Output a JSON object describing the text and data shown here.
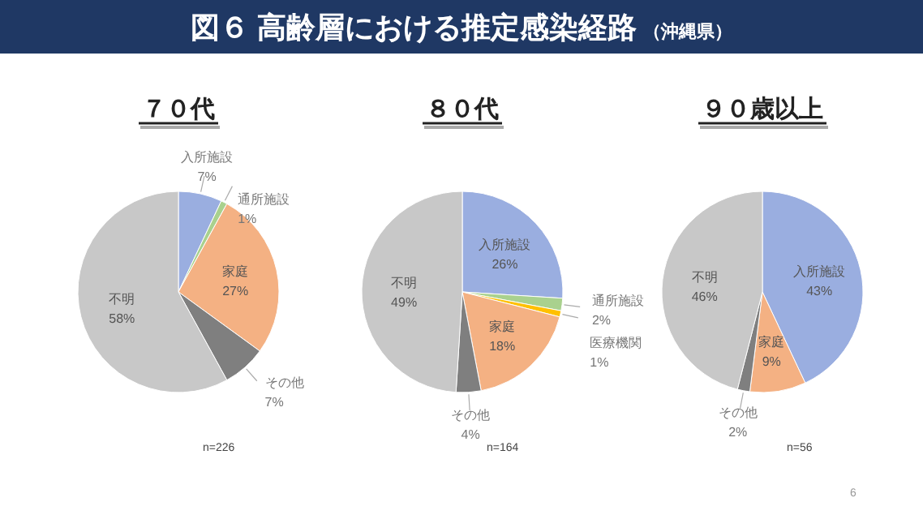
{
  "chart_data": [
    {
      "type": "other",
      "title": "図６ 高齢層における推定感染経路",
      "subtitle": "（沖縄県）",
      "annotations": [
        "6"
      ]
    },
    {
      "type": "pie",
      "title": "７０代",
      "categories": [
        "入所施設",
        "通所施設",
        "家庭",
        "その他",
        "不明"
      ],
      "values": [
        7,
        1,
        27,
        7,
        58
      ],
      "value_labels": [
        "7%",
        "1%",
        "27%",
        "7%",
        "58%"
      ],
      "colors": [
        "#9aaee0",
        "#a9d18e",
        "#f4b183",
        "#7f7f7f",
        "#c8c8c8"
      ],
      "annotations": [
        "n=226"
      ]
    },
    {
      "type": "pie",
      "title": "８０代",
      "categories": [
        "入所施設",
        "通所施設",
        "医療機関",
        "家庭",
        "その他",
        "不明"
      ],
      "values": [
        26,
        2,
        1,
        18,
        4,
        49
      ],
      "value_labels": [
        "26%",
        "2%",
        "1%",
        "18%",
        "4%",
        "49%"
      ],
      "colors": [
        "#9aaee0",
        "#a9d18e",
        "#ffc000",
        "#f4b183",
        "#7f7f7f",
        "#c8c8c8"
      ],
      "annotations": [
        "n=164"
      ]
    },
    {
      "type": "pie",
      "title": "９０歳以上",
      "categories": [
        "入所施設",
        "家庭",
        "その他",
        "不明"
      ],
      "values": [
        43,
        9,
        2,
        46
      ],
      "value_labels": [
        "43%",
        "9%",
        "2%",
        "46%"
      ],
      "colors": [
        "#9aaee0",
        "#f4b183",
        "#7f7f7f",
        "#c8c8c8"
      ],
      "annotations": [
        "n=56"
      ]
    }
  ]
}
